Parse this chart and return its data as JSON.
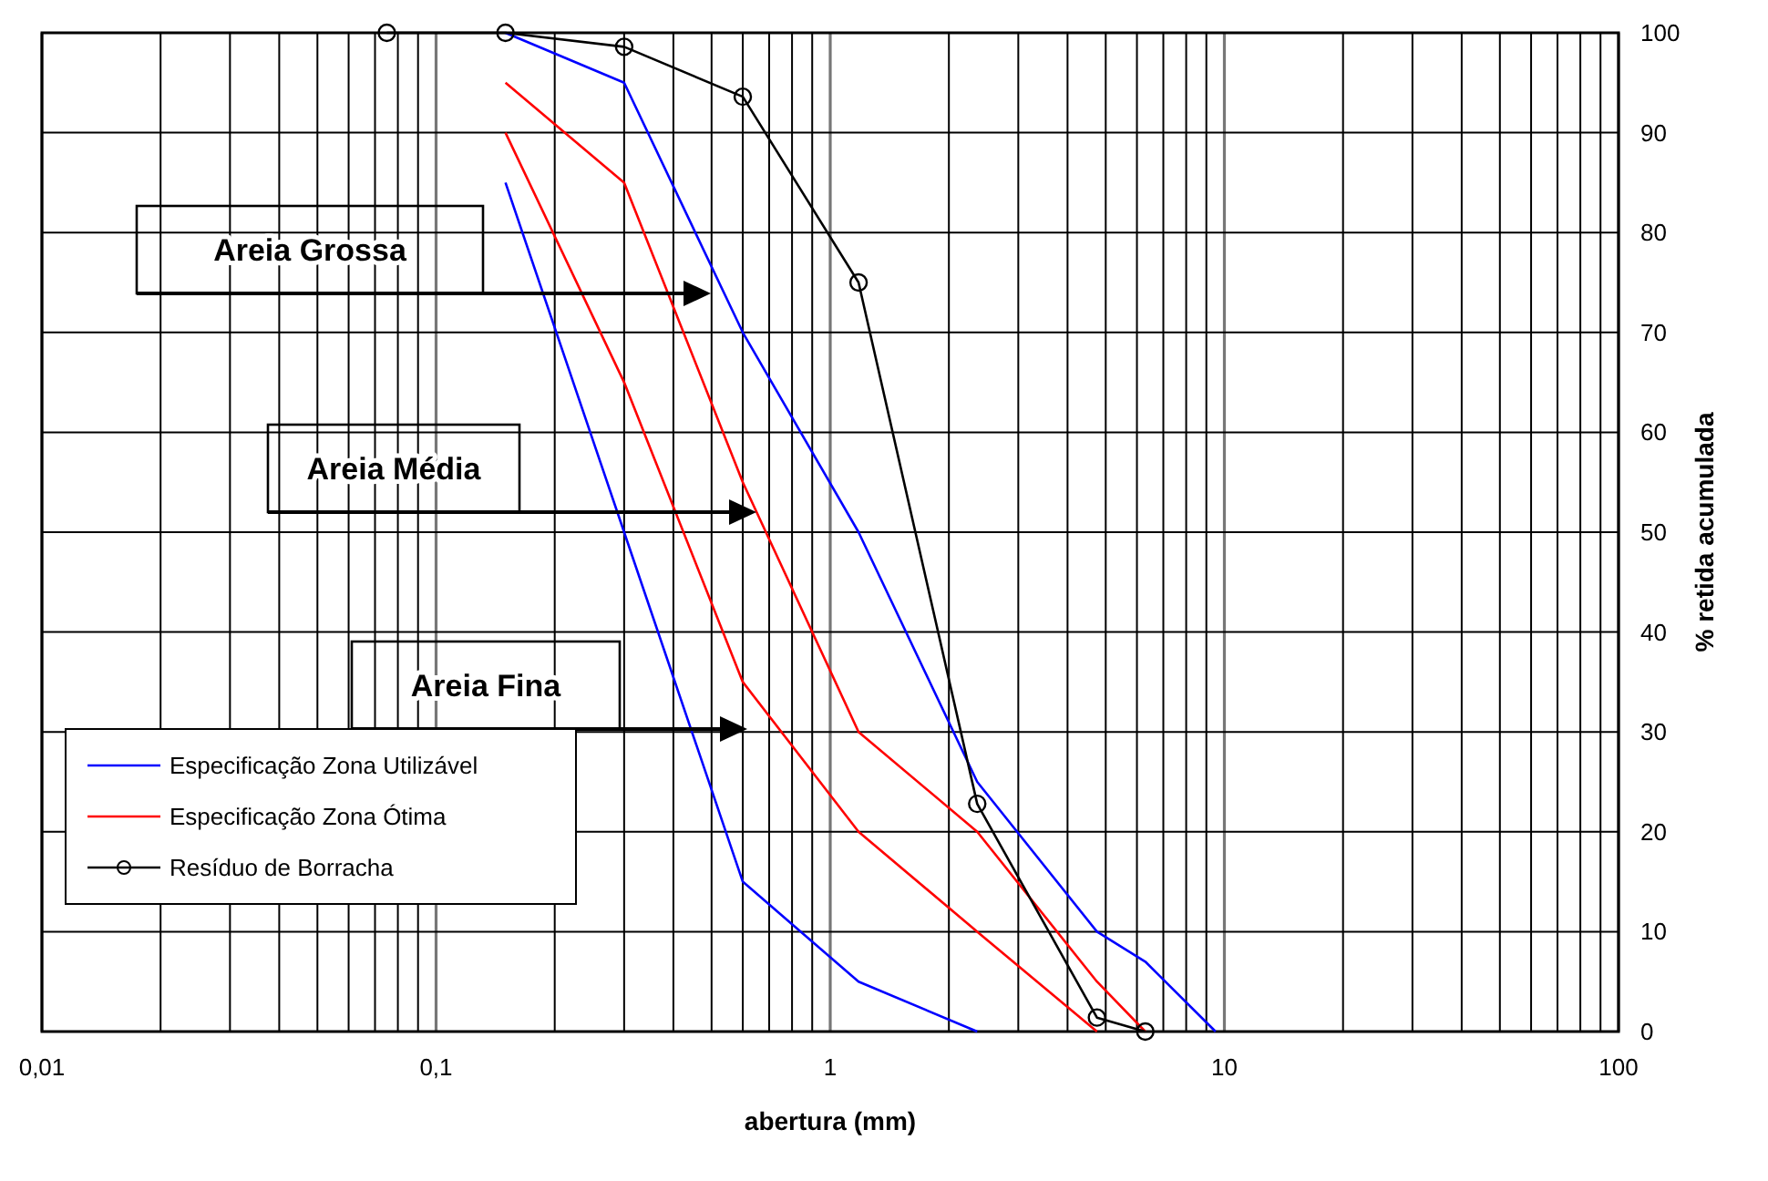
{
  "chart_data": {
    "type": "line",
    "xlabel": "abertura (mm)",
    "ylabel": "% retida acumulada",
    "log": "x",
    "grid": true,
    "legend": "bottom left",
    "line_style": "solid",
    "xlim": [
      0.01,
      100
    ],
    "ylim": [
      0,
      100
    ],
    "xticks": [
      {
        "value": 0.01,
        "label": "0,01"
      },
      {
        "value": 0.02,
        "label": null
      },
      {
        "value": 0.03,
        "label": null
      },
      {
        "value": 0.04,
        "label": null
      },
      {
        "value": 0.05,
        "label": null
      },
      {
        "value": 0.06,
        "label": null
      },
      {
        "value": 0.07,
        "label": null
      },
      {
        "value": 0.08,
        "label": null
      },
      {
        "value": 0.09,
        "label": null
      },
      {
        "value": 0.1,
        "label": "0,1"
      },
      {
        "value": 0.2,
        "label": null
      },
      {
        "value": 0.3,
        "label": null
      },
      {
        "value": 0.4,
        "label": null
      },
      {
        "value": 0.5,
        "label": null
      },
      {
        "value": 0.6,
        "label": null
      },
      {
        "value": 0.7,
        "label": null
      },
      {
        "value": 0.8,
        "label": null
      },
      {
        "value": 0.9,
        "label": null
      },
      1,
      {
        "value": 2,
        "label": null
      },
      {
        "value": 3,
        "label": null
      },
      {
        "value": 4,
        "label": null
      },
      {
        "value": 5,
        "label": null
      },
      {
        "value": 6,
        "label": null
      },
      {
        "value": 7,
        "label": null
      },
      {
        "value": 8,
        "label": null
      },
      {
        "value": 9,
        "label": null
      },
      10,
      {
        "value": 20,
        "label": null
      },
      {
        "value": 30,
        "label": null
      },
      {
        "value": 40,
        "label": null
      },
      {
        "value": 50,
        "label": null
      },
      {
        "value": 60,
        "label": null
      },
      {
        "value": 70,
        "label": null
      },
      {
        "value": 80,
        "label": null
      },
      {
        "value": 90,
        "label": null
      },
      100
    ],
    "yticks": [
      0,
      10,
      20,
      30,
      40,
      50,
      60,
      70,
      80,
      90,
      100
    ],
    "series": [
      {
        "name": "Especificação Zona Utilizável",
        "color": "#0000ff",
        "marker": "none",
        "x": [
          0.15,
          0.3,
          0.6,
          1.18,
          2.36,
          4.75,
          6.3,
          9.5
        ],
        "values": [
          100,
          95,
          70,
          50,
          25,
          10,
          7,
          0
        ]
      },
      {
        "color": "#0000ff",
        "marker": "none",
        "x": [
          0.15,
          0.3,
          0.6,
          1.18,
          2.36
        ],
        "values": [
          85,
          50,
          15,
          5,
          0
        ]
      },
      {
        "name": "Especificação Zona Ótima",
        "color": "#ff0000",
        "marker": "none",
        "x": [
          0.15,
          0.3,
          0.6,
          1.18,
          2.36,
          4.75,
          6.3
        ],
        "values": [
          95,
          85,
          55,
          30,
          20,
          5,
          0
        ]
      },
      {
        "color": "#ff0000",
        "marker": "none",
        "x": [
          0.15,
          0.3,
          0.6,
          1.18,
          2.36,
          4.75
        ],
        "values": [
          90,
          65,
          35,
          20,
          10,
          0
        ]
      },
      {
        "name": "Resíduo de Borracha",
        "color": "#000000",
        "marker": "circle",
        "x": [
          0.075,
          0.15,
          0.3,
          0.6,
          1.18,
          2.36,
          4.75,
          6.3
        ],
        "values": [
          100,
          100,
          98.6,
          93.6,
          75,
          22.8,
          1.4,
          0
        ]
      }
    ],
    "annotations": [
      "Areia Grossa",
      "Areia Média",
      "Areia Fina"
    ]
  }
}
